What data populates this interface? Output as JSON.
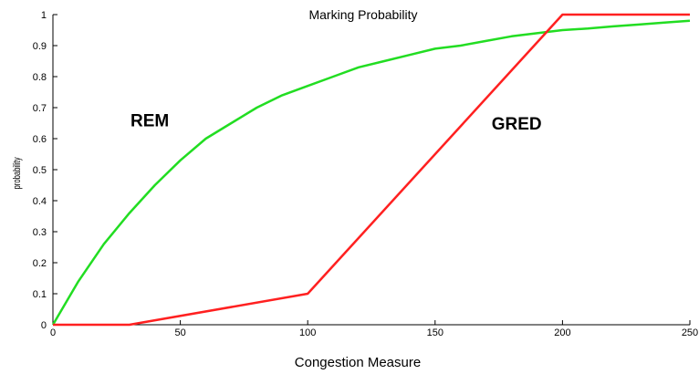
{
  "chart_data": {
    "type": "line",
    "title": "Marking Probability",
    "xlabel": "Congestion Measure",
    "ylabel": "probability",
    "xlim": [
      0,
      250
    ],
    "ylim": [
      0,
      1
    ],
    "x_ticks": [
      "0",
      "50",
      "100",
      "150",
      "200",
      "250"
    ],
    "y_ticks": [
      "0",
      "0.1",
      "0.2",
      "0.3",
      "0.4",
      "0.5",
      "0.6",
      "0.7",
      "0.8",
      "0.9",
      "1"
    ],
    "grid": false,
    "legend": "none",
    "series": [
      {
        "name": "REM",
        "color": "#22dd22",
        "x": [
          0,
          10,
          20,
          30,
          40,
          50,
          60,
          70,
          80,
          90,
          100,
          110,
          120,
          130,
          140,
          150,
          160,
          170,
          180,
          190,
          200,
          210,
          220,
          230,
          240,
          250
        ],
        "values": [
          0,
          0.14,
          0.26,
          0.36,
          0.45,
          0.53,
          0.6,
          0.65,
          0.7,
          0.74,
          0.77,
          0.8,
          0.83,
          0.85,
          0.87,
          0.89,
          0.9,
          0.915,
          0.93,
          0.94,
          0.95,
          0.955,
          0.962,
          0.968,
          0.974,
          0.98
        ]
      },
      {
        "name": "GRED",
        "color": "#ff2020",
        "x": [
          0,
          30,
          100,
          200,
          250
        ],
        "values": [
          0,
          0,
          0.1,
          1,
          1
        ]
      }
    ],
    "annotations": [
      {
        "text": "REM",
        "x": 38,
        "y": 0.64
      },
      {
        "text": "GRED",
        "x": 182,
        "y": 0.63
      }
    ]
  }
}
